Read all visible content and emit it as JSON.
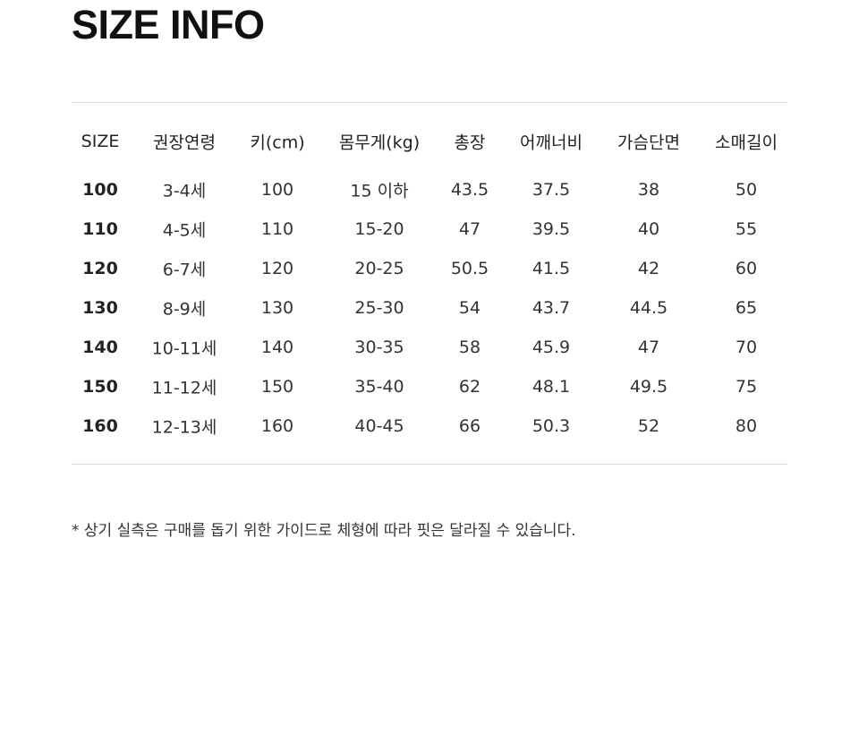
{
  "title": "SIZE INFO",
  "table": {
    "headers": [
      "SIZE",
      "권장연령",
      "키(cm)",
      "몸무게(kg)",
      "총장",
      "어깨너비",
      "가슴단면",
      "소매길이"
    ],
    "rows": [
      [
        "100",
        "3-4세",
        "100",
        "15 이하",
        "43.5",
        "37.5",
        "38",
        "50"
      ],
      [
        "110",
        "4-5세",
        "110",
        "15-20",
        "47",
        "39.5",
        "40",
        "55"
      ],
      [
        "120",
        "6-7세",
        "120",
        "20-25",
        "50.5",
        "41.5",
        "42",
        "60"
      ],
      [
        "130",
        "8-9세",
        "130",
        "25-30",
        "54",
        "43.7",
        "44.5",
        "65"
      ],
      [
        "140",
        "10-11세",
        "140",
        "30-35",
        "58",
        "45.9",
        "47",
        "70"
      ],
      [
        "150",
        "11-12세",
        "150",
        "35-40",
        "62",
        "48.1",
        "49.5",
        "75"
      ],
      [
        "160",
        "12-13세",
        "160",
        "40-45",
        "66",
        "50.3",
        "52",
        "80"
      ]
    ]
  },
  "note": "* 상기 실측은 구매를 돕기 위한 가이드로 체형에 따라 핏은 달라질 수 있습니다."
}
